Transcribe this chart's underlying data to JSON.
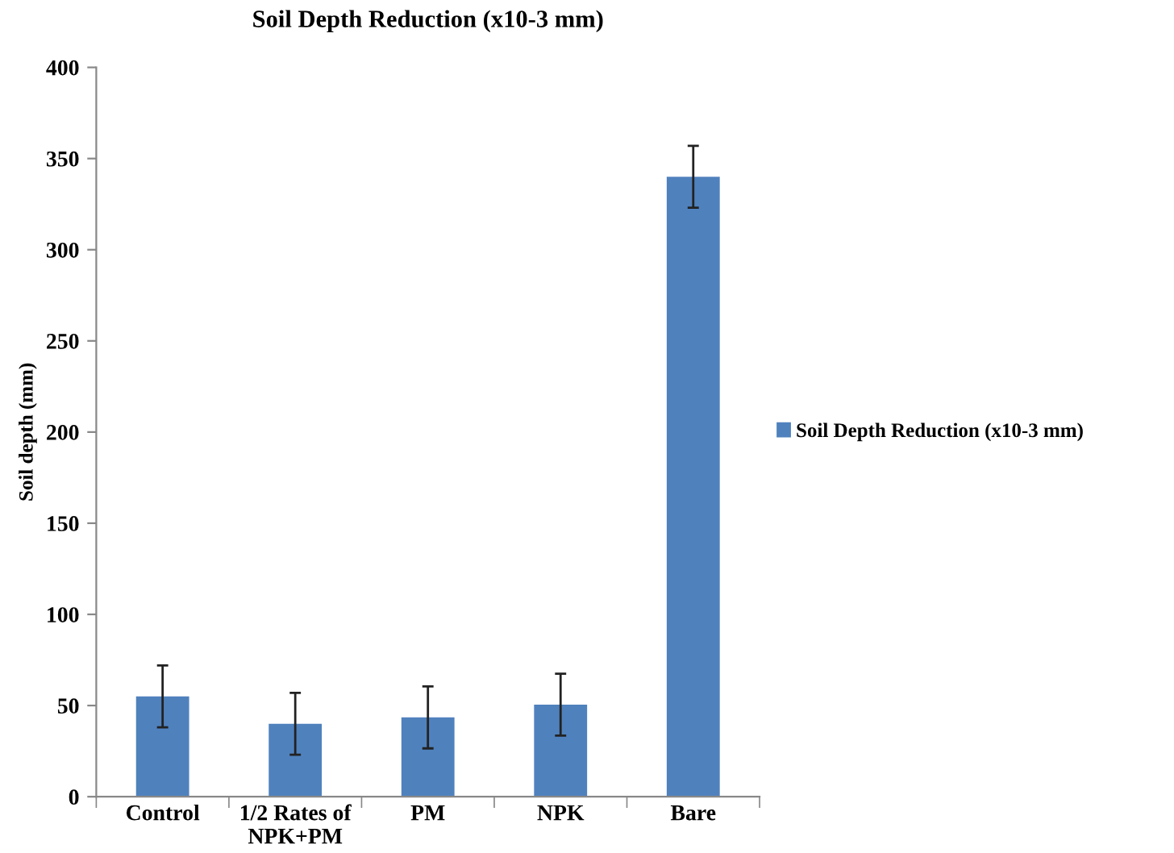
{
  "chart_data": {
    "type": "bar",
    "title": "Soil Depth Reduction (x10-3 mm)",
    "ylabel": "Soil depth (mm)",
    "categories": [
      "Control",
      "1/2 Rates of\nNPK+PM",
      "PM",
      "NPK",
      "Bare"
    ],
    "series": [
      {
        "name": "Soil Depth Reduction (x10-3 mm)",
        "color": "#4f81bd",
        "values": [
          55,
          40,
          43.5,
          50.5,
          340
        ],
        "errors": [
          17,
          17,
          17,
          17,
          17
        ]
      }
    ],
    "ylim": [
      0,
      400
    ],
    "yticks": [
      0,
      50,
      100,
      150,
      200,
      250,
      300,
      350,
      400
    ],
    "grid": false,
    "legend": "right"
  }
}
